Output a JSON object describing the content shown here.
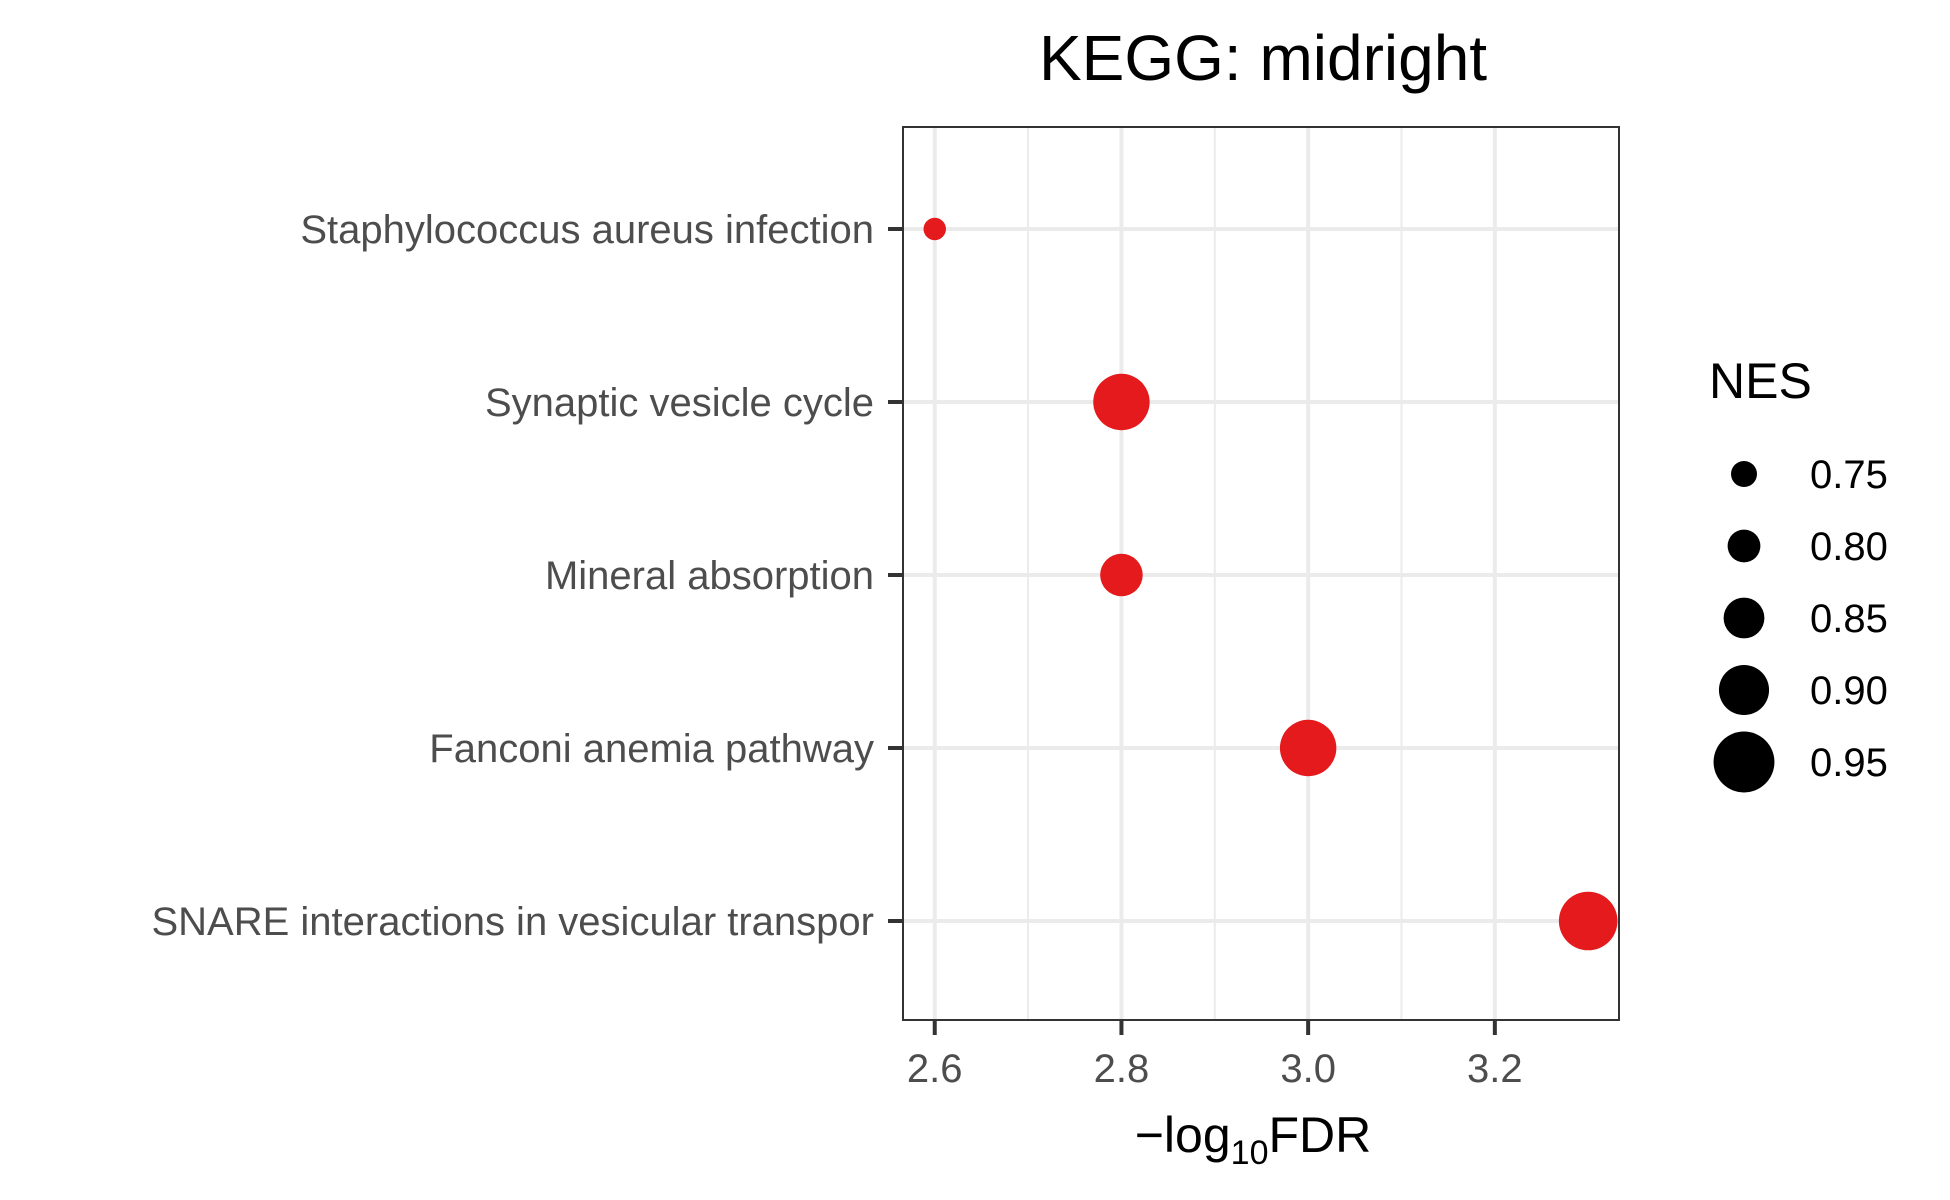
{
  "chart_data": {
    "type": "scatter",
    "title": "KEGG: midright",
    "xlabel_prefix": "−log",
    "xlabel_sub": "10",
    "xlabel_suffix": "FDR",
    "xlim": [
      2.566,
      3.333
    ],
    "x_ticks": [
      2.6,
      2.8,
      3.0,
      3.2
    ],
    "x_tick_labels": [
      "2.6",
      "2.8",
      "3.0",
      "3.2"
    ],
    "categories": [
      "Staphylococcus aureus infection",
      "Synaptic vesicle cycle",
      "Mineral absorption",
      "Fanconi anemia pathway",
      "SNARE interactions in vesicular transpor"
    ],
    "points": [
      {
        "label": "Staphylococcus aureus infection",
        "x": 2.6,
        "nes": 0.72
      },
      {
        "label": "Synaptic vesicle cycle",
        "x": 2.8,
        "nes": 0.93
      },
      {
        "label": "Mineral absorption",
        "x": 2.8,
        "nes": 0.86
      },
      {
        "label": "Fanconi anemia pathway",
        "x": 3.0,
        "nes": 0.93
      },
      {
        "label": "SNARE interactions in vesicular transpor",
        "x": 3.3,
        "nes": 0.94
      }
    ],
    "point_color": "#e41a1c",
    "grid": true,
    "legend": {
      "title": "NES",
      "position": "right",
      "values": [
        0.75,
        0.8,
        0.85,
        0.9,
        0.95
      ],
      "labels": [
        "0.75",
        "0.80",
        "0.85",
        "0.90",
        "0.95"
      ],
      "color": "#000000"
    }
  }
}
